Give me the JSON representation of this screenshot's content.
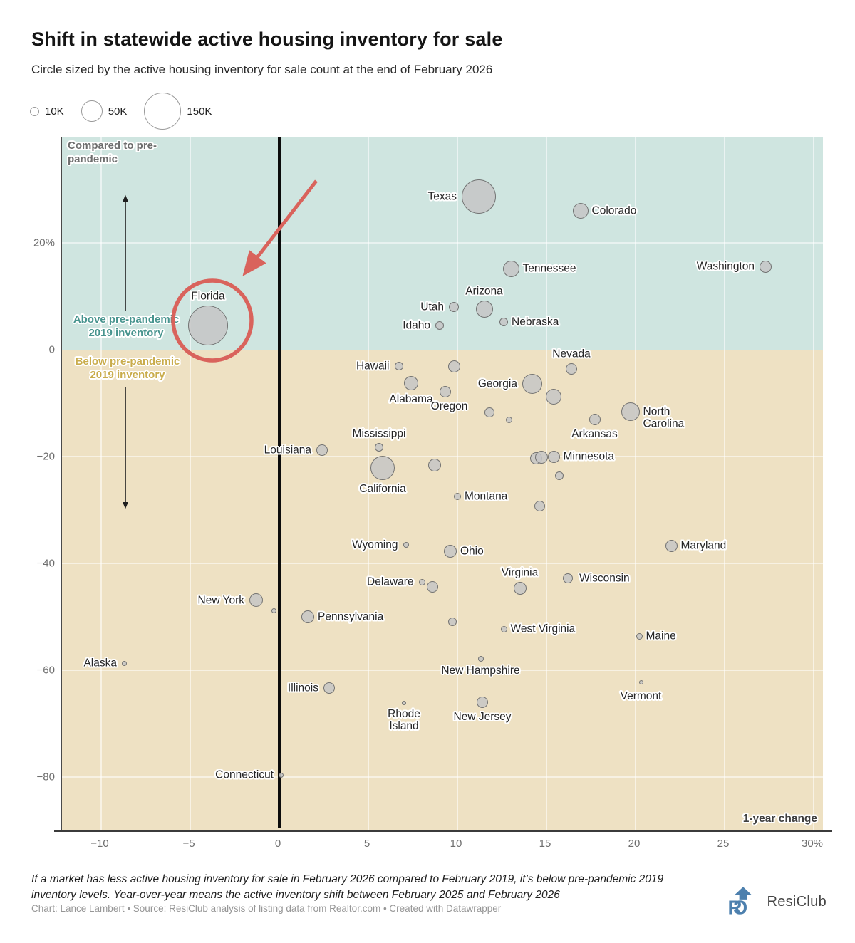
{
  "header": {
    "title": "Shift in statewide active housing inventory for sale",
    "subtitle": "Circle sized by the active housing inventory for sale count at the end of February 2026"
  },
  "size_legend": {
    "items": [
      {
        "label": "10K",
        "r": 6.5
      },
      {
        "label": "50K",
        "r": 15
      },
      {
        "label": "150K",
        "r": 26
      }
    ]
  },
  "chart_data": {
    "type": "scatter",
    "title": "Shift in statewide active housing inventory for sale",
    "x_axis": {
      "label": "1-year change",
      "domain": [
        -12.2,
        30.6
      ],
      "ticks": [
        {
          "label": "−10",
          "v": -10
        },
        {
          "label": "−5",
          "v": -5
        },
        {
          "label": "0",
          "v": 0
        },
        {
          "label": "5",
          "v": 5
        },
        {
          "label": "10",
          "v": 10
        },
        {
          "label": "15",
          "v": 15
        },
        {
          "label": "20",
          "v": 20
        },
        {
          "label": "25",
          "v": 25
        },
        {
          "label": "30%",
          "v": 30
        }
      ]
    },
    "y_axis": {
      "label": "Compared to pre-pandemic",
      "domain": [
        -90,
        39.9
      ],
      "ticks": [
        {
          "label": "20%",
          "v": 20
        },
        {
          "label": "0",
          "v": 0
        },
        {
          "label": "−20",
          "v": -20
        },
        {
          "label": "−40",
          "v": -40
        },
        {
          "label": "−60",
          "v": -60
        },
        {
          "label": "−80",
          "v": -80
        }
      ]
    },
    "annotations": {
      "compared": "Compared to pre-\npandemic",
      "above": "Above pre-pandemic\n2019 inventory",
      "below": "Below pre-pandemic\n2019 inventory",
      "x_axis_label": "1-year change"
    },
    "points": [
      {
        "name": "Texas",
        "x": 11.2,
        "y": 28.7,
        "r": 24,
        "side": "left"
      },
      {
        "name": "Colorado",
        "x": 16.9,
        "y": 26.0,
        "r": 11,
        "side": "right"
      },
      {
        "name": "Tennessee",
        "x": 13.0,
        "y": 15.2,
        "r": 11.5,
        "side": "right"
      },
      {
        "name": "Washington",
        "x": 27.3,
        "y": 15.6,
        "r": 8.5,
        "side": "left"
      },
      {
        "name": "Florida",
        "x": -4.0,
        "y": 4.5,
        "r": 28,
        "side": "above"
      },
      {
        "name": "Arizona",
        "x": 11.5,
        "y": 7.6,
        "r": 12,
        "side": "above"
      },
      {
        "name": "Utah",
        "x": 9.8,
        "y": 8.0,
        "r": 7,
        "side": "left"
      },
      {
        "name": "Idaho",
        "x": 9.0,
        "y": 4.5,
        "r": 6,
        "side": "left"
      },
      {
        "name": "Nebraska",
        "x": 12.6,
        "y": 5.2,
        "r": 6,
        "side": "right"
      },
      {
        "name": "Hawaii",
        "x": 6.7,
        "y": -3.1,
        "r": 6,
        "side": "left"
      },
      {
        "name": "",
        "x": 9.8,
        "y": -3.1,
        "r": 8.5
      },
      {
        "name": "Alabama",
        "x": 7.4,
        "y": -6.3,
        "r": 10,
        "side": "below"
      },
      {
        "name": "Oregon",
        "x": 9.3,
        "y": -7.9,
        "r": 8,
        "side": "below",
        "ldx": 6
      },
      {
        "name": "Georgia",
        "x": 14.2,
        "y": -6.4,
        "r": 14,
        "side": "left"
      },
      {
        "name": "Nevada",
        "x": 16.4,
        "y": -3.6,
        "r": 8,
        "side": "above"
      },
      {
        "name": "",
        "x": 15.4,
        "y": -8.8,
        "r": 11
      },
      {
        "name": "North Carolina",
        "label": "North\nCarolina",
        "x": 19.7,
        "y": -11.6,
        "r": 13,
        "side": "right",
        "ldy": 9
      },
      {
        "name": "Arkansas",
        "x": 17.7,
        "y": -13.1,
        "r": 8,
        "side": "below"
      },
      {
        "name": "",
        "x": 11.8,
        "y": -11.7,
        "r": 7
      },
      {
        "name": "",
        "x": 12.9,
        "y": -13.1,
        "r": 4.5
      },
      {
        "name": "Mississippi",
        "x": 5.6,
        "y": -18.3,
        "r": 6,
        "side": "above"
      },
      {
        "name": "Louisiana",
        "x": 2.4,
        "y": -18.8,
        "r": 8,
        "side": "left"
      },
      {
        "name": "California",
        "x": 5.8,
        "y": -22.1,
        "r": 17,
        "side": "below"
      },
      {
        "name": "",
        "x": 8.7,
        "y": -21.6,
        "r": 9
      },
      {
        "name": "",
        "x": 14.4,
        "y": -20.3,
        "r": 8.5
      },
      {
        "name": "",
        "x": 14.7,
        "y": -20.1,
        "r": 9
      },
      {
        "name": "Minnesota",
        "x": 15.4,
        "y": -20.0,
        "r": 8.5,
        "side": "right"
      },
      {
        "name": "",
        "x": 15.7,
        "y": -23.6,
        "r": 6
      },
      {
        "name": "Montana",
        "x": 10.0,
        "y": -27.5,
        "r": 5,
        "side": "right"
      },
      {
        "name": "",
        "x": 14.6,
        "y": -29.2,
        "r": 7.5
      },
      {
        "name": "Wyoming",
        "x": 7.1,
        "y": -36.5,
        "r": 4,
        "side": "left"
      },
      {
        "name": "Ohio",
        "x": 9.6,
        "y": -37.7,
        "r": 9,
        "side": "right"
      },
      {
        "name": "Maryland",
        "x": 22.0,
        "y": -36.7,
        "r": 8.5,
        "side": "right"
      },
      {
        "name": "Delaware",
        "x": 8.0,
        "y": -43.5,
        "r": 4.5,
        "side": "left"
      },
      {
        "name": "",
        "x": 8.6,
        "y": -44.4,
        "r": 8
      },
      {
        "name": "Virginia",
        "x": 13.5,
        "y": -44.7,
        "r": 9,
        "side": "above"
      },
      {
        "name": "Wisconsin",
        "x": 16.2,
        "y": -42.8,
        "r": 7,
        "side": "right",
        "ldx": 4
      },
      {
        "name": "New York",
        "x": -1.3,
        "y": -46.9,
        "r": 9.5,
        "side": "left"
      },
      {
        "name": "",
        "x": -0.3,
        "y": -48.8,
        "r": 3.5
      },
      {
        "name": "Pennsylvania",
        "x": 1.6,
        "y": -50.0,
        "r": 9,
        "side": "right"
      },
      {
        "name": "",
        "x": 9.7,
        "y": -50.9,
        "r": 6
      },
      {
        "name": "West Virginia",
        "x": 12.6,
        "y": -52.3,
        "r": 4.5,
        "side": "right"
      },
      {
        "name": "Maine",
        "x": 20.2,
        "y": -53.6,
        "r": 4.5,
        "side": "right"
      },
      {
        "name": "Alaska",
        "x": -8.7,
        "y": -58.7,
        "r": 3.5,
        "side": "left"
      },
      {
        "name": "New Hampshire",
        "x": 11.3,
        "y": -57.9,
        "r": 4,
        "side": "below"
      },
      {
        "name": "Illinois",
        "x": 2.8,
        "y": -63.3,
        "r": 8,
        "side": "left"
      },
      {
        "name": "Vermont",
        "x": 20.3,
        "y": -62.3,
        "r": 3,
        "side": "below",
        "ldy": 4
      },
      {
        "name": "Rhode Island",
        "label": "Rhode\nIsland",
        "x": 7.0,
        "y": -66.1,
        "r": 3,
        "side": "below"
      },
      {
        "name": "New Jersey",
        "x": 11.4,
        "y": -66.0,
        "r": 8,
        "side": "below"
      },
      {
        "name": "Connecticut",
        "x": 0.1,
        "y": -79.6,
        "r": 3.5,
        "side": "left"
      }
    ]
  },
  "colors": {
    "above_region": "#cfe5e0",
    "below_region": "#eee1c3",
    "bubble_fill": "#c6c6c6",
    "bubble_stroke": "#5c5c5c",
    "accent_red": "#d9635c",
    "above_text": "#47948e",
    "below_text": "#c9ac4b",
    "brand_blue": "#4d80ae"
  },
  "footer": {
    "note": "If a market has less active housing inventory for sale in February 2026 compared to February 2019, it’s below pre-pandemic 2019 inventory levels. Year-over-year means the active inventory shift between February 2025 and February 2026",
    "byline": "Chart: Lance Lambert • Source: ResiClub analysis of listing data from Realtor.com • Created with Datawrapper",
    "brand": "ResiClub"
  }
}
